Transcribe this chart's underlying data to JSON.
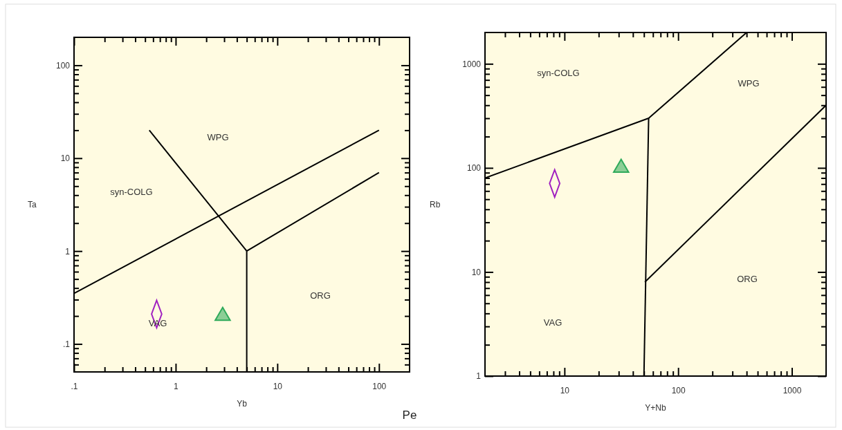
{
  "chart_data": [
    {
      "type": "scatter",
      "xlabel": "Yb",
      "ylabel": "Ta",
      "log": "xy",
      "xlim": [
        0.1,
        200
      ],
      "ylim": [
        0.05,
        200
      ],
      "xticks": [
        {
          "value": 0.1,
          "label": ".1"
        },
        {
          "value": 0.2,
          "label": null
        },
        {
          "value": 0.3,
          "label": null
        },
        {
          "value": 0.4,
          "label": null
        },
        {
          "value": 0.5,
          "label": null
        },
        {
          "value": 0.6,
          "label": null
        },
        {
          "value": 0.7,
          "label": null
        },
        {
          "value": 0.8,
          "label": null
        },
        {
          "value": 0.9,
          "label": null
        },
        1,
        {
          "value": 2,
          "label": null
        },
        {
          "value": 3,
          "label": null
        },
        {
          "value": 4,
          "label": null
        },
        {
          "value": 5,
          "label": null
        },
        {
          "value": 6,
          "label": null
        },
        {
          "value": 7,
          "label": null
        },
        {
          "value": 8,
          "label": null
        },
        {
          "value": 9,
          "label": null
        },
        10,
        {
          "value": 20,
          "label": null
        },
        {
          "value": 30,
          "label": null
        },
        {
          "value": 40,
          "label": null
        },
        {
          "value": 50,
          "label": null
        },
        {
          "value": 60,
          "label": null
        },
        {
          "value": 70,
          "label": null
        },
        {
          "value": 80,
          "label": null
        },
        {
          "value": 90,
          "label": null
        },
        100
      ],
      "yticks": [
        {
          "value": 0.06,
          "label": null
        },
        {
          "value": 0.07,
          "label": null
        },
        {
          "value": 0.08,
          "label": null
        },
        {
          "value": 0.09,
          "label": null
        },
        {
          "value": 0.1,
          "label": ".1"
        },
        {
          "value": 0.2,
          "label": null
        },
        {
          "value": 0.3,
          "label": null
        },
        {
          "value": 0.4,
          "label": null
        },
        {
          "value": 0.5,
          "label": null
        },
        {
          "value": 0.6,
          "label": null
        },
        {
          "value": 0.7,
          "label": null
        },
        {
          "value": 0.8,
          "label": null
        },
        {
          "value": 0.9,
          "label": null
        },
        1,
        {
          "value": 2,
          "label": null
        },
        {
          "value": 3,
          "label": null
        },
        {
          "value": 4,
          "label": null
        },
        {
          "value": 5,
          "label": null
        },
        {
          "value": 6,
          "label": null
        },
        {
          "value": 7,
          "label": null
        },
        {
          "value": 8,
          "label": null
        },
        {
          "value": 9,
          "label": null
        },
        10,
        {
          "value": 20,
          "label": null
        },
        {
          "value": 30,
          "label": null
        },
        {
          "value": 40,
          "label": null
        },
        {
          "value": 50,
          "label": null
        },
        {
          "value": 60,
          "label": null
        },
        {
          "value": 70,
          "label": null
        },
        {
          "value": 80,
          "label": null
        },
        {
          "value": 90,
          "label": null
        },
        100
      ],
      "series": [
        {
          "type": "line",
          "color": "#000000",
          "x": [
            0.1,
            100
          ],
          "values": [
            0.35,
            20
          ]
        },
        {
          "type": "line",
          "color": "#000000",
          "x": [
            0.55,
            3,
            5
          ],
          "values": [
            20,
            2,
            1
          ]
        },
        {
          "type": "line",
          "color": "#000000",
          "x": [
            5,
            5
          ],
          "values": [
            1,
            0.05
          ]
        },
        {
          "type": "line",
          "color": "#000000",
          "x": [
            5,
            100
          ],
          "values": [
            1,
            7
          ]
        },
        {
          "marker": "diamond",
          "color": "#a020c0",
          "x": [
            0.65
          ],
          "values": [
            0.21
          ]
        },
        {
          "marker": "triangle",
          "color": "#2eaa5a",
          "x": [
            2.9
          ],
          "values": [
            0.2
          ]
        }
      ],
      "annotations": [
        "WPG",
        "syn-COLG",
        "VAG",
        "ORG",
        "Pe"
      ]
    },
    {
      "type": "scatter",
      "xlabel": "Y+Nb",
      "ylabel": "Rb",
      "log": "xy",
      "xlim": [
        2,
        2000
      ],
      "ylim": [
        1,
        2000
      ],
      "xticks": [
        {
          "value": 3,
          "label": null
        },
        {
          "value": 4,
          "label": null
        },
        {
          "value": 5,
          "label": null
        },
        {
          "value": 6,
          "label": null
        },
        {
          "value": 7,
          "label": null
        },
        {
          "value": 8,
          "label": null
        },
        {
          "value": 9,
          "label": null
        },
        10,
        {
          "value": 20,
          "label": null
        },
        {
          "value": 30,
          "label": null
        },
        {
          "value": 40,
          "label": null
        },
        {
          "value": 50,
          "label": null
        },
        {
          "value": 60,
          "label": null
        },
        {
          "value": 70,
          "label": null
        },
        {
          "value": 80,
          "label": null
        },
        {
          "value": 90,
          "label": null
        },
        100,
        {
          "value": 200,
          "label": null
        },
        {
          "value": 300,
          "label": null
        },
        {
          "value": 400,
          "label": null
        },
        {
          "value": 500,
          "label": null
        },
        {
          "value": 600,
          "label": null
        },
        {
          "value": 700,
          "label": null
        },
        {
          "value": 800,
          "label": null
        },
        {
          "value": 900,
          "label": null
        },
        1000
      ],
      "yticks": [
        1,
        {
          "value": 2,
          "label": null
        },
        {
          "value": 3,
          "label": null
        },
        {
          "value": 4,
          "label": null
        },
        {
          "value": 5,
          "label": null
        },
        {
          "value": 6,
          "label": null
        },
        {
          "value": 7,
          "label": null
        },
        {
          "value": 8,
          "label": null
        },
        {
          "value": 9,
          "label": null
        },
        10,
        {
          "value": 20,
          "label": null
        },
        {
          "value": 30,
          "label": null
        },
        {
          "value": 40,
          "label": null
        },
        {
          "value": 50,
          "label": null
        },
        {
          "value": 60,
          "label": null
        },
        {
          "value": 70,
          "label": null
        },
        {
          "value": 80,
          "label": null
        },
        {
          "value": 90,
          "label": null
        },
        100,
        {
          "value": 200,
          "label": null
        },
        {
          "value": 300,
          "label": null
        },
        {
          "value": 400,
          "label": null
        },
        {
          "value": 500,
          "label": null
        },
        {
          "value": 600,
          "label": null
        },
        {
          "value": 700,
          "label": null
        },
        {
          "value": 800,
          "label": null
        },
        {
          "value": 900,
          "label": null
        },
        1000
      ],
      "series": [
        {
          "type": "line",
          "color": "#000000",
          "x": [
            2,
            55,
            400
          ],
          "values": [
            80,
            300,
            2000
          ]
        },
        {
          "type": "line",
          "color": "#000000",
          "x": [
            50,
            55
          ],
          "values": [
            1,
            300
          ]
        },
        {
          "type": "line",
          "color": "#000000",
          "x": [
            51,
            2000
          ],
          "values": [
            8,
            400
          ]
        },
        {
          "marker": "diamond",
          "color": "#a020c0",
          "x": [
            8.2
          ],
          "values": [
            71
          ]
        },
        {
          "marker": "triangle",
          "color": "#2eaa5a",
          "x": [
            31.5
          ],
          "values": [
            100
          ]
        }
      ],
      "annotations": [
        "syn-COLG",
        "WPG",
        "ORG",
        "VAG"
      ]
    }
  ]
}
